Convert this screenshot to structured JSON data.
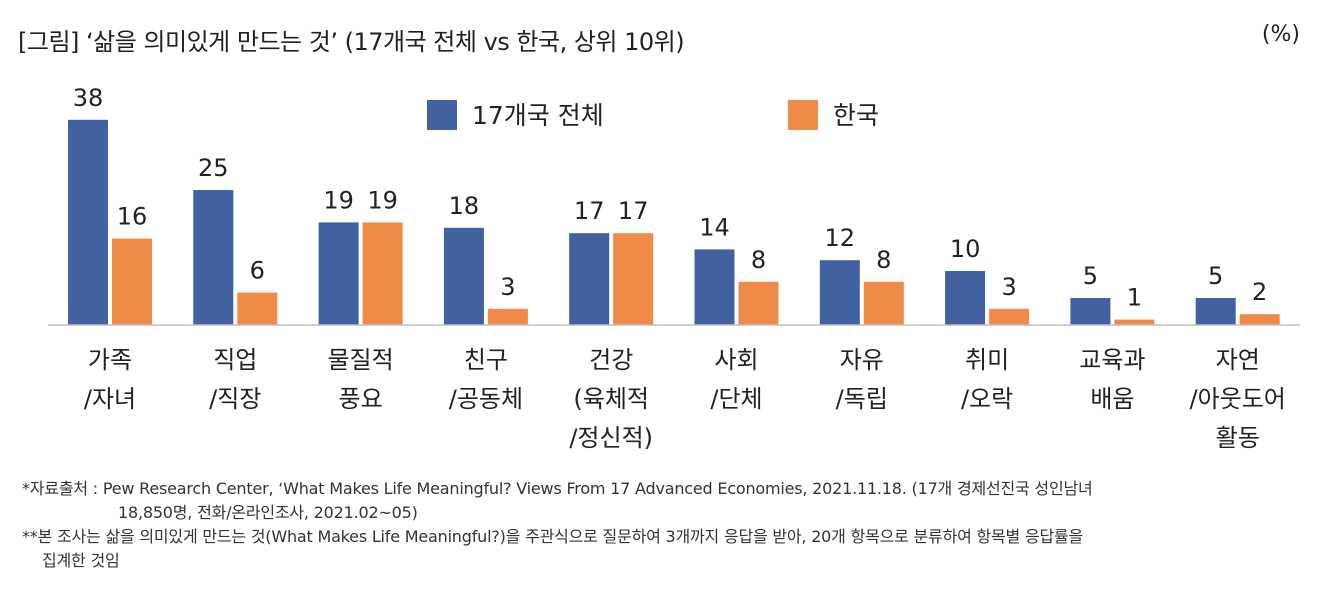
{
  "title": "[그림] ‘삶을 의미있게 만드는 것’ (17개국 전체 vs 한국, 상위 10위)",
  "unit_label": "(%)",
  "chart_data": {
    "type": "bar",
    "categories": [
      [
        "가족",
        "/자녀"
      ],
      [
        "직업",
        "/직장"
      ],
      [
        "물질적",
        "풍요"
      ],
      [
        "친구",
        "/공동체"
      ],
      [
        "건강",
        "(육체적",
        "/정신적)"
      ],
      [
        "사회",
        "/단체"
      ],
      [
        "자유",
        "/독립"
      ],
      [
        "취미",
        "/오락"
      ],
      [
        "교육과",
        "배움"
      ],
      [
        "자연",
        "/아웃도어",
        "활동"
      ]
    ],
    "series": [
      {
        "name": "17개국 전체",
        "color": "#4161a0",
        "values": [
          38,
          25,
          19,
          18,
          17,
          14,
          12,
          10,
          5,
          5
        ]
      },
      {
        "name": "한국",
        "color": "#f08a48",
        "values": [
          16,
          6,
          19,
          3,
          17,
          8,
          8,
          3,
          1,
          2
        ]
      }
    ],
    "ylim": [
      0,
      40
    ],
    "legend": "top-center",
    "grid": false
  },
  "notes": {
    "line1": "*자료출처 : Pew Research Center, ‘What Makes Life Meaningful? Views From 17 Advanced Economies, 2021.11.18. (17개 경제선진국 성인남녀",
    "line2": "18,850명, 전화/온라인조사, 2021.02~05)",
    "line3": "**본 조사는 삶을 의미있게 만드는 것(What Makes Life Meaningful?)을 주관식으로 질문하여 3개까지 응답을 받아, 20개 항목으로 분류하여 항목별 응답률을",
    "line4": "집계한 것임"
  }
}
